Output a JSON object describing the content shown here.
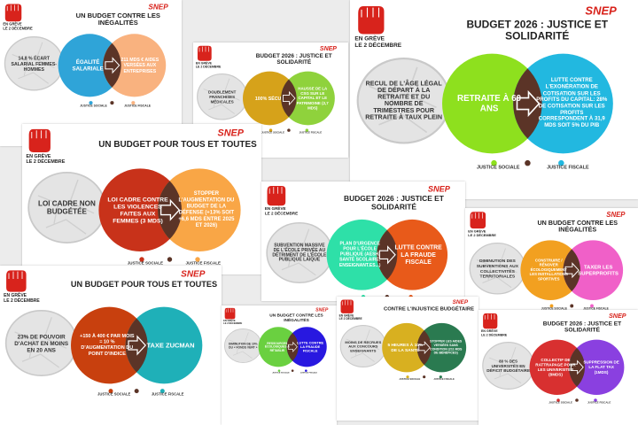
{
  "strike": "EN GRÈVE",
  "date": "LE 2 DÉCEMBRE",
  "logo": "SNEP",
  "legend": [
    "JUSTICE SOCIALE",
    "JUSTICE FISCALE"
  ],
  "posters": [
    {
      "title": "UN BUDGET CONTRE LES INÉGALITÉS",
      "problem": "14,8 % ÉCART SALARIAL FEMMES-HOMMES",
      "left": "ÉGALITÉ SALARIALE",
      "right": "211 MDS € AIDES VERSÉES AUX ENTREPRISES"
    },
    {
      "title": "BUDGET 2026 : JUSTICE ET SOLIDARITÉ",
      "problem": "DOUBLEMENT FRANCHISES MÉDICALES",
      "left": "100% SÉCU",
      "right": "HAUSSE DE LA CSG SUR LE CAPITAL ET LE PATRIMOINE (2,7 MDS)"
    },
    {
      "title": "BUDGET 2026 : JUSTICE ET SOLIDARITÉ",
      "problem": "RECUL DE L'ÂGE LÉGAL DE DÉPART À LA RETRAITE ET DU NOMBRE DE TRIMESTRES POUR RETRAITE À TAUX PLEIN",
      "left": "RETRAITE À 60 ANS",
      "right": "LUTTE CONTRE L'EXONÉRATION DE COTISATION SUR LES PROFITS DU CAPITAL: 28% DE COTISATION SUR LES PROFITS CORRESPONDENT À 31,9 MDS SOIT 5% DU PIB"
    },
    {
      "title": "UN BUDGET POUR TOUS ET TOUTES",
      "problem": "LOI CADRE NON BUDGÉTÉE",
      "left": "LOI CADRE CONTRE LES VIOLENCES FAITES AUX FEMMES (3 MDS)",
      "right": "STOPPER L'AUGMENTATION DU BUDGET DE LA DÉFENSE (+13% SOIT +6,6 MDS ENTRE 2025 ET 2026)"
    },
    {
      "title": "BUDGET 2026 : JUSTICE ET SOLIDARITÉ",
      "problem": "SUBVENTION MASSIVE DE L'ÉCOLE PRIVÉE AU DÉTRIMENT DE L'ÉCOLE PUBLIQUE LAÏQUE",
      "left": "PLAN D'URGENCE POUR L'ÉCOLE PUBLIQUE (AESH, SANTÉ SCOLAIRE, ENSEIGNANT.ES...)",
      "right": "LUTTE CONTRE LA FRAUDE FISCALE"
    },
    {
      "title": "UN BUDGET CONTRE LES INÉGALITÉS",
      "problem": "DIMINUTION DES SUBVENTIONS AUX COLLECTIVITÉS TERRITORIALES",
      "left": "CONSTRUIRE / RÉNOVER ÉCOLOGIQUEMENT LES INSTALLATIONS SPORTIVES",
      "right": "TAXER LES SUPERPROFITS"
    },
    {
      "title": "UN BUDGET POUR TOUS ET TOUTES",
      "problem": "23% DE POUVOIR D'ACHAT EN MOINS EN 20 ANS",
      "left": "+150 À 400 € PAR MOIS = 10 % D'AUGMENTATION DU POINT D'INDICE",
      "right": "TAXE ZUCMAN"
    },
    {
      "title": "UN BUDGET CONTRE LES INÉGALITÉS",
      "problem": "DIMINUTION DE 10% DU « FONDS VERT »",
      "left": "RESSOURCES ÉCOLOGIQUES À RÉTABLIR",
      "right": "LUTTE CONTRE LA FRAUDE FISCALE"
    },
    {
      "title": "CONTRE L'INJUSTICE BUDGÉTAIRE",
      "problem": "MOINS DE RECRUES AUX CONCOURS ENSEIGNANTS",
      "left": "5 HEURES À 10% DE LA SANTÉ",
      "right": "STOPPER LES AIDES VERSÉES SANS CONDITION (211 MDS DE BÉNÉFICES)"
    },
    {
      "title": "BUDGET 2026 : JUSTICE ET SOLIDARITÉ",
      "problem": "80 % DES UNIVERSITÉS EN DÉFICIT BUDGÉTAIRE",
      "left": "COLLECTIF DE RATTRAPAGE POUR LES UNIVERSITÉS (8MDS)",
      "right": "SUPPRESSION DE LA FLAT TAX (1MDS)"
    }
  ]
}
